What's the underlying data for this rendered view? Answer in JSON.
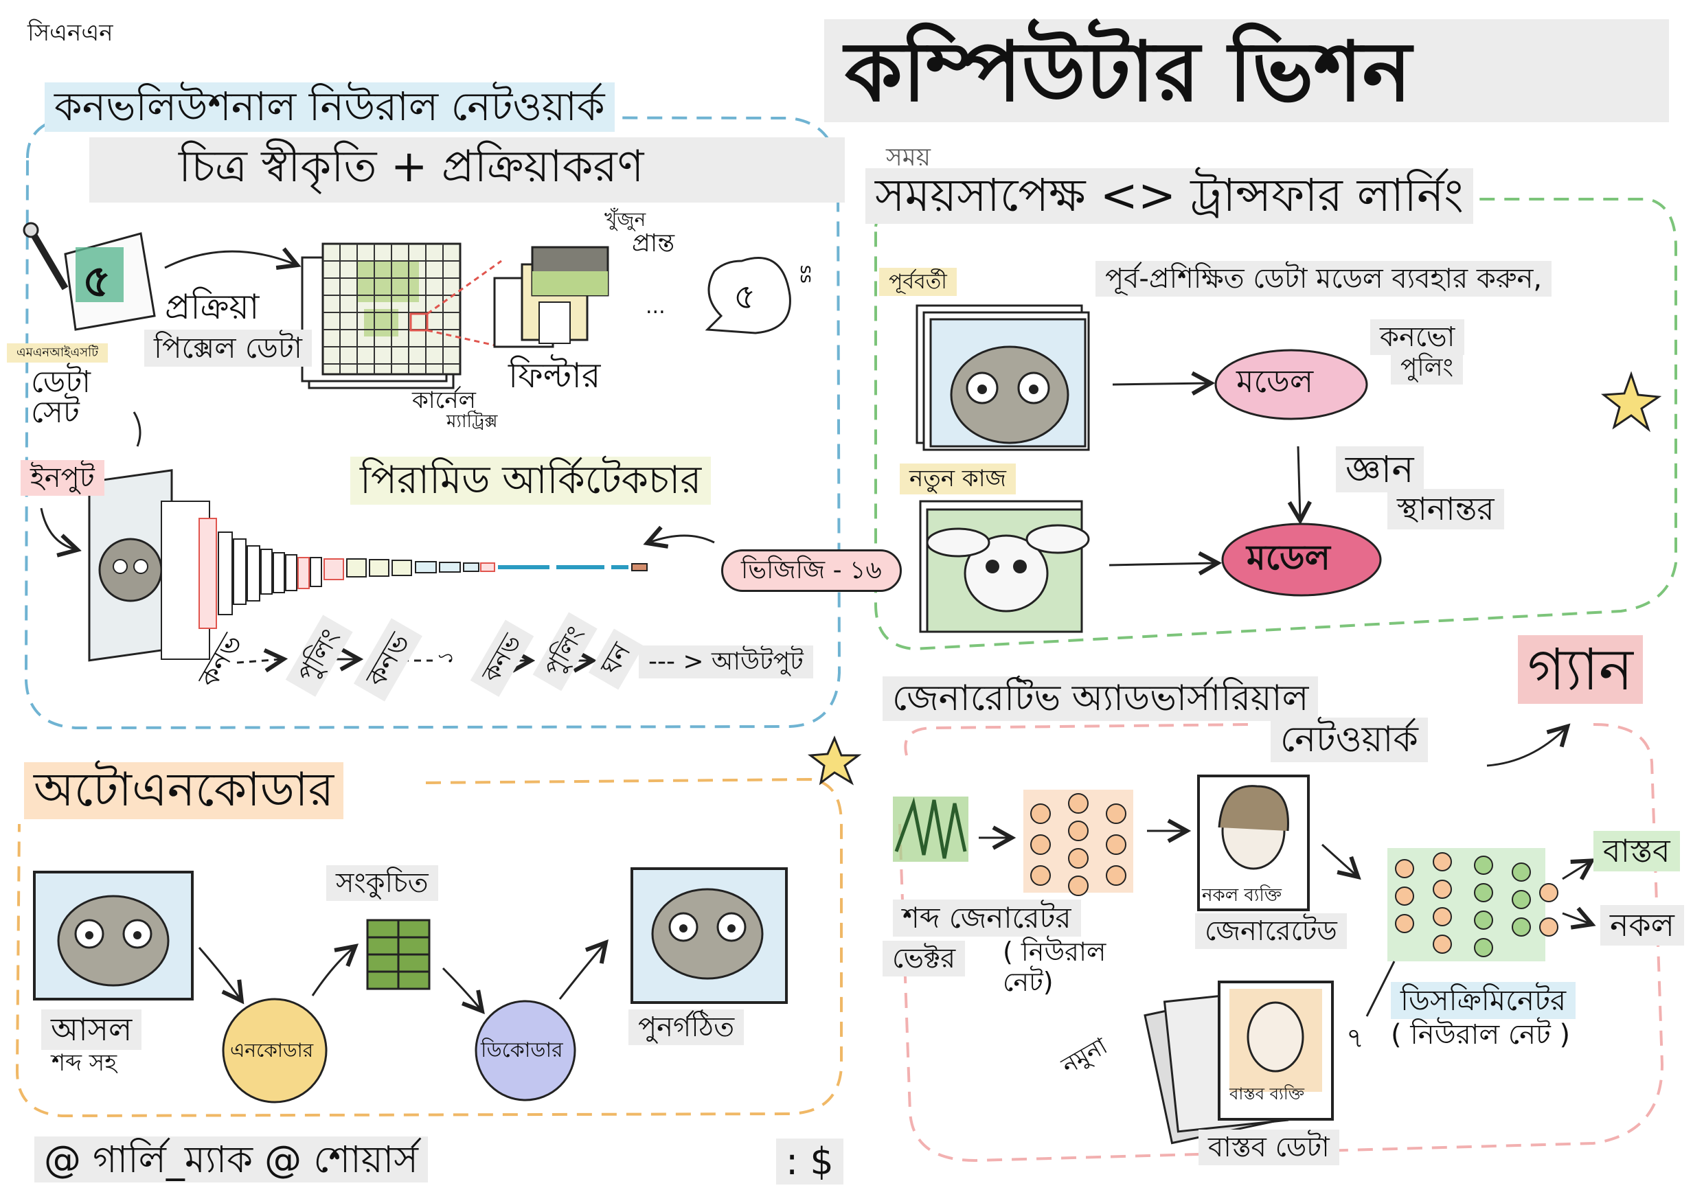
{
  "title": "কম্পিউটার ভিশন",
  "cnn": {
    "tag": "সিএনএন",
    "title": "কনভলিউশনাল নিউরাল নেটওয়ার্ক",
    "subtitle": "চিত্র স্বীকৃতি + প্রক্রিয়াকরণ",
    "digit": "৫",
    "dataset_tag": "এমএনআইএসটি",
    "dataset": "ডেটা\nসেট",
    "process": "প্রক্রিয়া",
    "pixel_data": "পিক্সেল ডেটা",
    "kernel": "কার্নেল",
    "matrix": "ম্যাট্রিক্স",
    "find": "খুঁজুন",
    "edges": "প্রান্ত",
    "filter": "ফিল্টার",
    "ellipsis": "...",
    "bubble": "৫",
    "bubble_dots": "ss",
    "input": "ইনপুট",
    "pyramid": "পিরামিড আর্কিটেকচার",
    "vgg": "ভিজিজি - ১৬",
    "flow": [
      "কনভ",
      "পুলিং",
      "কনভ",
      "১",
      "কনভ",
      "পুলিং",
      "ঘন"
    ],
    "output": "--- > আউটপুট"
  },
  "transfer": {
    "time_fragment": "সময়",
    "title": "সময়সাপেক্ষ <> ট্রান্সফার লার্নিং",
    "previous": "পূর্ববর্তী",
    "pretrained": "পূর্ব-প্রশিক্ষিত ডেটা মডেল ব্যবহার করুন,",
    "convo": "কনভো",
    "pooling": "পুলিং",
    "model1": "মডেল",
    "knowledge": "জ্ঞান",
    "transfer_word": "স্থানান্তর",
    "new_task": "নতুন কাজ",
    "model2": "মডেল"
  },
  "autoencoder": {
    "title": "অটোএনকোডার",
    "compressed": "সংকুচিত",
    "original": "আসল",
    "with_noise": "শব্দ সহ",
    "encoder": "এনকোডার",
    "decoder": "ডিকোডার",
    "reconstructed": "পুনর্গঠিত"
  },
  "gan": {
    "title_line1": "জেনারেটিভ অ্যাডভার্সারিয়াল",
    "title_line2": "নেটওয়ার্ক",
    "badge": "গ্যান",
    "fake_person": "নকল ব্যক্তি",
    "generated": "জেনারেটেড",
    "noise_generator": "শব্দ জেনারেটর",
    "vector": "ভেক্টর",
    "neural_net": "( নিউরাল\nনেট)",
    "real": "বাস্তব",
    "fake": "নকল",
    "discriminator": "ডিসক্রিমিনেটর",
    "discriminator_sub": "( নিউরাল নেট )",
    "sample": "নমুনা",
    "seven": "৭",
    "real_person": "বাস্তব ব্যক্তি",
    "real_data": "বাস্তব ডেটা"
  },
  "footer": {
    "credit": "@ গার্লি_ম্যাক @ শোয়ার্স",
    "dollar": ": $"
  },
  "colors": {
    "cnn_border": "#6fb3d2",
    "transfer_border": "#7cc47a",
    "autoencoder_border": "#f0b866",
    "gan_border": "#f2b0b0",
    "model_fill": "#f4bfd0",
    "encoder_fill": "#f6d98a",
    "decoder_fill": "#c2c6f0",
    "label_band": "#ececec"
  }
}
